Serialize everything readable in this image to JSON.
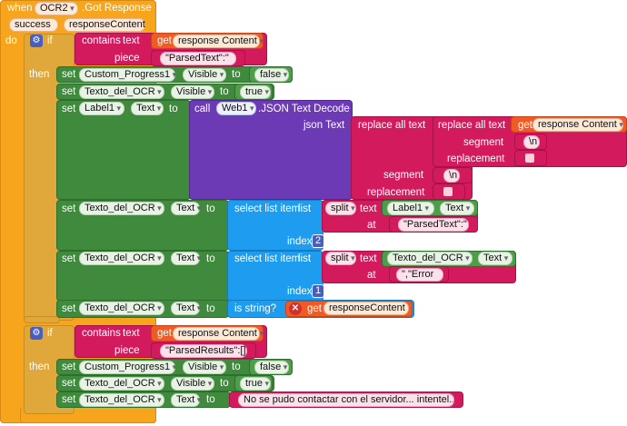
{
  "event": {
    "when": "when",
    "component": "OCR2",
    "event_name": ".Got Response",
    "params": [
      "success",
      "responseContent"
    ],
    "do": "do"
  },
  "if1": {
    "if": "if",
    "contains": "contains",
    "text": "text",
    "piece": "piece",
    "get": "get",
    "get_var": "response Content",
    "piece_value": "\"ParsedText\":\"",
    "then": "then",
    "set": "set",
    "to": "to",
    "row1": {
      "component": "Custom_Progress1",
      "prop": "Visible",
      "value": "false"
    },
    "row2": {
      "component": "Texto_del_OCR",
      "prop": "Visible",
      "value": "true"
    },
    "row3": {
      "component": "Label1",
      "prop": "Text",
      "call": "call",
      "web": "Web1",
      "method": ".JSON Text Decode",
      "json_text": "json Text",
      "replace_all": "replace all text",
      "segment": "segment",
      "replacement": "replacement",
      "seg1": "\\n",
      "seg2": "\\n",
      "get_var": "response Content"
    },
    "row4": {
      "component": "Texto_del_OCR",
      "prop": "Text",
      "select": "select list item",
      "list": "list",
      "split": "split",
      "text": "text",
      "at": "at",
      "index": "index",
      "label": "Label1",
      "label_prop": "Text",
      "at_value": "\"ParsedText\":\"",
      "index_value": "2"
    },
    "row5": {
      "component": "Texto_del_OCR",
      "prop": "Text",
      "select": "select list item",
      "list": "list",
      "split": "split",
      "text": "text",
      "at": "at",
      "index": "index",
      "label": "Texto_del_OCR",
      "label_prop": "Text",
      "at_value": "\",\"Error",
      "index_value": "1"
    },
    "row6": {
      "component": "Texto_del_OCR",
      "prop": "Text",
      "is_string": "is string?",
      "get": "get",
      "get_var": "responseContent"
    }
  },
  "if2": {
    "if": "if",
    "contains": "contains",
    "text": "text",
    "piece": "piece",
    "get": "get",
    "get_var": "response Content",
    "piece_value": "\"ParsedResults\":[]",
    "then": "then",
    "set": "set",
    "to": "to",
    "row1": {
      "component": "Custom_Progress1",
      "prop": "Visible",
      "value": "false"
    },
    "row2": {
      "component": "Texto_del_OCR",
      "prop": "Visible",
      "value": "true"
    },
    "row3": {
      "component": "Texto_del_OCR",
      "prop": "Text",
      "value": "No se pudo contactar con el servidor... intentel..."
    }
  },
  "colors": {
    "event": "#f7a51c",
    "control": "#e0a83a",
    "component": "#3f8a3c",
    "list": "#1e9df0",
    "text": "#d31a5d",
    "web": "#6c3ab5",
    "variable": "#f05a24"
  }
}
